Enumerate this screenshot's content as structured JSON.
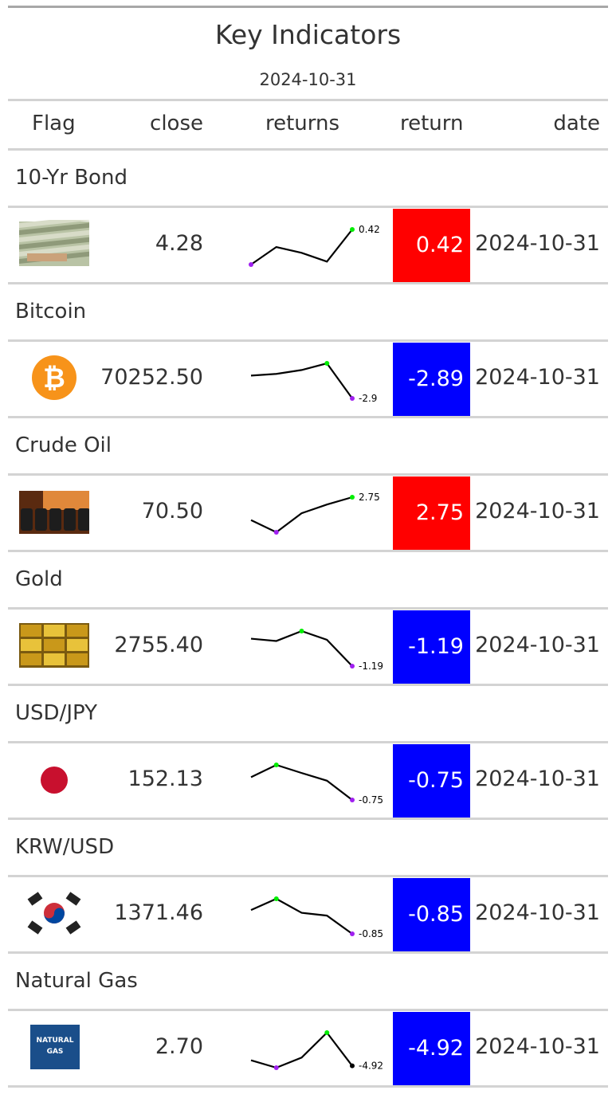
{
  "title": "Key Indicators",
  "subtitle": "2024-10-31",
  "columns": {
    "flag": "Flag",
    "close": "close",
    "returns": "returns",
    "return": "return",
    "date": "date"
  },
  "colors": {
    "positive": "#ff0000",
    "negative": "#0000ff",
    "min_marker": "#a020f0",
    "max_marker": "#00ee00",
    "last_marker": "#000000"
  },
  "rows": [
    {
      "group": "10-Yr Bond",
      "flag_icon": "us-dollar-bills-icon",
      "close": "4.28",
      "spark": [
        0.3,
        0.36,
        0.34,
        0.31,
        0.42
      ],
      "spark_label": "0.42",
      "return": "0.42",
      "date": "2024-10-31",
      "sign": "positive"
    },
    {
      "group": "Bitcoin",
      "flag_icon": "bitcoin-logo-icon",
      "close": "70252.50",
      "spark": [
        1.2,
        1.5,
        2.2,
        3.4,
        -2.9
      ],
      "spark_label": "-2.9",
      "return": "-2.89",
      "date": "2024-10-31",
      "sign": "negative"
    },
    {
      "group": "Crude Oil",
      "flag_icon": "crude-oil-barrels-icon",
      "close": "70.50",
      "spark": [
        0.1,
        -1.3,
        0.9,
        1.9,
        2.75
      ],
      "spark_label": "2.75",
      "return": "2.75",
      "date": "2024-10-31",
      "sign": "positive"
    },
    {
      "group": "Gold",
      "flag_icon": "gold-bars-icon",
      "close": "2755.40",
      "spark": [
        0.0,
        -0.1,
        0.33,
        -0.05,
        -1.19
      ],
      "spark_label": "-1.19",
      "return": "-1.19",
      "date": "2024-10-31",
      "sign": "negative"
    },
    {
      "group": "USD/JPY",
      "flag_icon": "japan-flag-icon",
      "close": "152.13",
      "spark": [
        -0.1,
        0.25,
        0.02,
        -0.2,
        -0.75
      ],
      "spark_label": "-0.75",
      "return": "-0.75",
      "date": "2024-10-31",
      "sign": "negative"
    },
    {
      "group": "KRW/USD",
      "flag_icon": "south-korea-flag-icon",
      "close": "1371.46",
      "spark": [
        0.0,
        0.4,
        -0.1,
        -0.2,
        -0.85
      ],
      "spark_label": "-0.85",
      "return": "-0.85",
      "date": "2024-10-31",
      "sign": "negative"
    },
    {
      "group": "Natural Gas",
      "flag_icon": "natural-gas-icon",
      "close": "2.70",
      "spark": [
        -3.5,
        -5.4,
        -2.8,
        3.6,
        -4.92
      ],
      "spark_label": "-4.92",
      "return": "-4.92",
      "date": "2024-10-31",
      "sign": "negative"
    }
  ],
  "natural_gas_text": [
    "NATURAL",
    "GAS"
  ]
}
